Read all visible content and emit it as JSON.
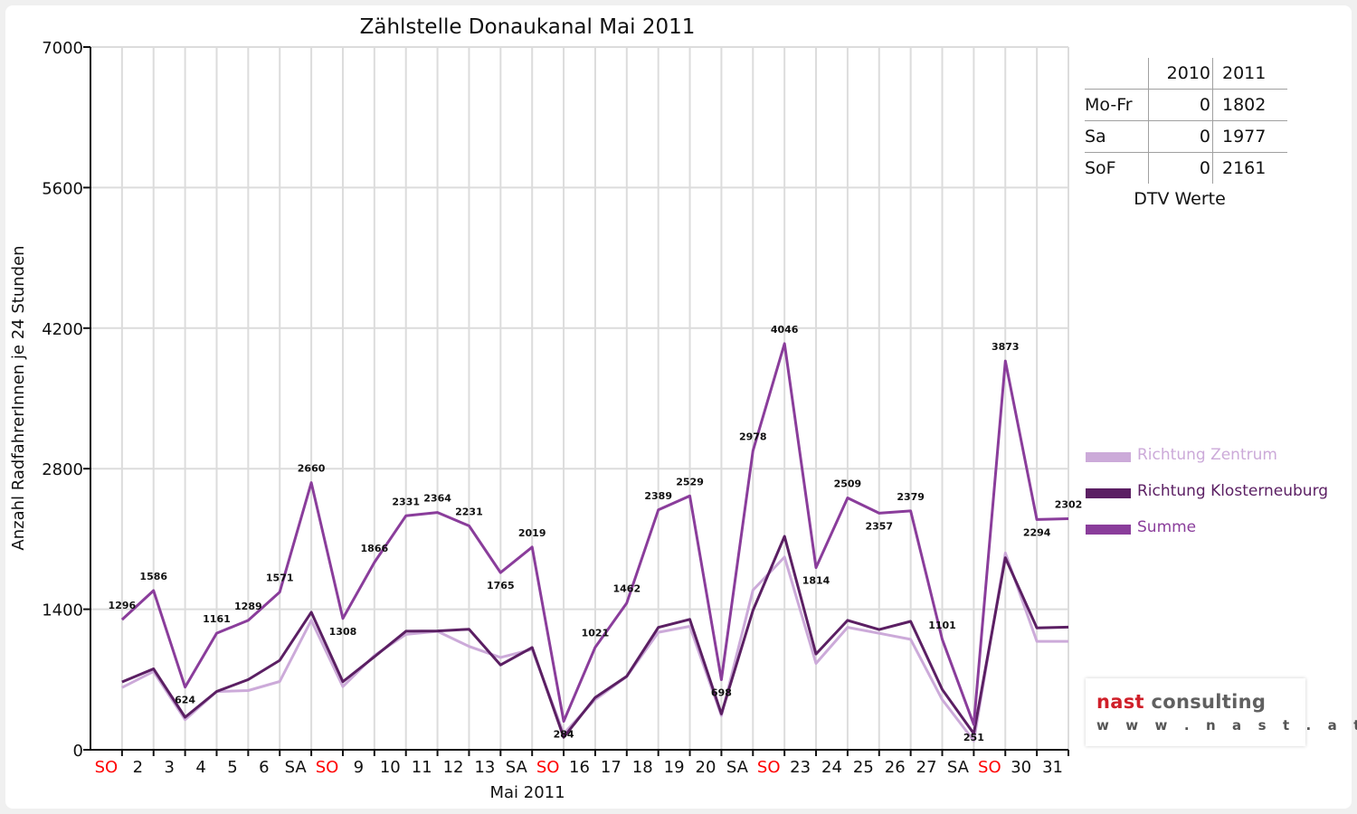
{
  "chart_data": {
    "type": "line",
    "title": "Zählstelle Donaukanal Mai 2011",
    "xlabel": "Mai 2011",
    "ylabel": "Anzahl RadfahrerInnen je 24 Stunden",
    "ylim": [
      0,
      7000
    ],
    "yticks": [
      0,
      1400,
      2800,
      4200,
      5600,
      7000
    ],
    "grid": true,
    "legend_position": "right",
    "categories": [
      "SO",
      "2",
      "3",
      "4",
      "5",
      "6",
      "SA",
      "SO",
      "9",
      "10",
      "11",
      "12",
      "13",
      "SA",
      "SO",
      "16",
      "17",
      "18",
      "19",
      "20",
      "SA",
      "SO",
      "23",
      "24",
      "25",
      "26",
      "27",
      "SA",
      "SO",
      "30",
      "31"
    ],
    "weekend_label_color": "#ff0000",
    "series": [
      {
        "name": "Richtung Zentrum",
        "color": "#ccaad9",
        "values": [
          620,
          780,
          300,
          580,
          590,
          680,
          1290,
          630,
          940,
          1150,
          1180,
          1030,
          920,
          1000,
          160,
          500,
          730,
          1170,
          1230,
          340,
          1590,
          1920,
          860,
          1220,
          1160,
          1100,
          500,
          90,
          1960,
          1080,
          1080
        ]
      },
      {
        "name": "Richtung Klosterneuburg",
        "color": "#5b1f63",
        "values": [
          676,
          806,
          324,
          581,
          699,
          891,
          1370,
          678,
          926,
          1181,
          1184,
          1201,
          845,
          1019,
          124,
          521,
          732,
          1219,
          1299,
          358,
          1388,
          2126,
          954,
          1289,
          1197,
          1279,
          601,
          161,
          1913,
          1214,
          1222
        ]
      },
      {
        "name": "Summe",
        "color": "#8a3d9b",
        "values": [
          1296,
          1586,
          624,
          1161,
          1289,
          1571,
          2660,
          1308,
          1866,
          2331,
          2364,
          2231,
          1765,
          2019,
          284,
          1021,
          1462,
          2389,
          2529,
          698,
          2978,
          4046,
          1814,
          2509,
          2357,
          2379,
          1101,
          251,
          3873,
          2294,
          2302
        ]
      }
    ],
    "data_labels": [
      "1296",
      "1586",
      "624",
      "1161",
      "1289",
      "1571",
      "2660",
      "1308",
      "1866",
      "2331",
      "2364",
      "2231",
      "1765",
      "2019",
      "284",
      "1021",
      "1462",
      "2389",
      "2529",
      "698",
      "2978",
      "4046",
      "1814",
      "2509",
      "2357",
      "2379",
      "1101",
      "251",
      "3873",
      "2294",
      "2302"
    ]
  },
  "dtv": {
    "caption": "DTV Werte",
    "header": {
      "y2010": "2010",
      "y2011": "2011"
    },
    "rows": [
      {
        "label": "Mo-Fr",
        "y2010": "0",
        "y2011": "1802"
      },
      {
        "label": "Sa",
        "y2010": "0",
        "y2011": "1977"
      },
      {
        "label": "SoF",
        "y2010": "0",
        "y2011": "2161"
      }
    ]
  },
  "logo": {
    "brand": "nast",
    "rest": " consulting",
    "url": "www.nast.at"
  }
}
